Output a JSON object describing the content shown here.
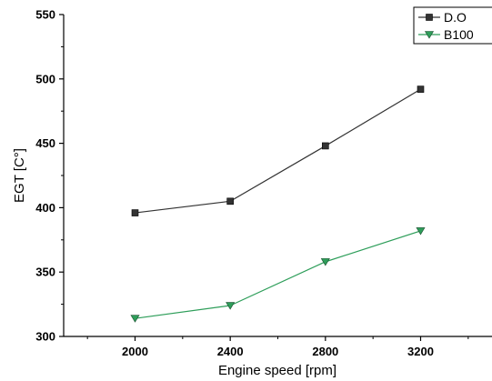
{
  "chart_data": {
    "type": "line",
    "xlabel": "Engine speed [rpm]",
    "ylabel": "EGT [C°]",
    "x": [
      2000,
      2400,
      2800,
      3200
    ],
    "xlim": [
      1700,
      3500
    ],
    "ylim": [
      300,
      550
    ],
    "x_ticks": [
      2000,
      2400,
      2800,
      3200
    ],
    "y_ticks": [
      300,
      350,
      400,
      450,
      500,
      550
    ],
    "grid": false,
    "legend_position": "top-right",
    "series": [
      {
        "name": "D.O",
        "values": [
          396,
          405,
          448,
          492
        ],
        "color": "#333333",
        "marker": "square"
      },
      {
        "name": "B100",
        "values": [
          314,
          324,
          358,
          382
        ],
        "color": "#2e9e5a",
        "marker": "triangle-down"
      }
    ]
  }
}
